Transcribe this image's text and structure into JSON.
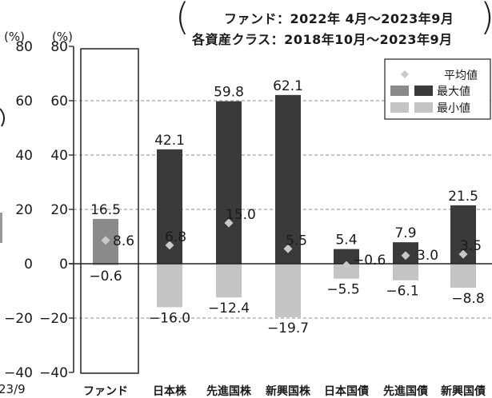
{
  "header": {
    "line1": "ファンド：2022年 4月～2023年9月",
    "line2": "各資産クラス：2018年10月～2023年9月"
  },
  "chart_data": {
    "type": "bar",
    "y_unit_left": "(%)",
    "y_unit_right": "(%)",
    "ylim": [
      -40,
      80
    ],
    "yticks": [
      80,
      60,
      40,
      20,
      0,
      -20,
      -40
    ],
    "ytick_labels": [
      "80",
      "60",
      "40",
      "20",
      "0",
      "−20",
      "−40"
    ],
    "left_partial_xtick": "23/9",
    "categories": [
      "ファンド",
      "日本株",
      "先進国株",
      "新興国株",
      "日本国債",
      "先進国債",
      "新興国債"
    ],
    "series": [
      {
        "name": "最大値",
        "values": [
          16.5,
          42.1,
          59.8,
          62.1,
          5.4,
          7.9,
          21.5
        ],
        "labels": [
          "16.5",
          "42.1",
          "59.8",
          "62.1",
          "5.4",
          "7.9",
          "21.5"
        ]
      },
      {
        "name": "最小値",
        "values": [
          -0.6,
          -16.0,
          -12.4,
          -19.7,
          -5.5,
          -6.1,
          -8.8
        ],
        "labels": [
          "−0.6",
          "−16.0",
          "−12.4",
          "−19.7",
          "−5.5",
          "−6.1",
          "−8.8"
        ]
      },
      {
        "name": "平均値",
        "values": [
          8.6,
          6.8,
          15.0,
          5.5,
          -0.6,
          3.0,
          3.5
        ],
        "labels": [
          "8.6",
          "6.8",
          "15.0",
          "5.5",
          "−0.6",
          "3.0",
          "3.5"
        ]
      }
    ],
    "legend": {
      "position": "top-right",
      "avg_label": "平均値",
      "max_label": "最大値",
      "min_label": "最小値"
    },
    "colors": {
      "fund_max": "#8a8a8a",
      "asset_max": "#3a3a3a",
      "min": "#c4c4c4",
      "avg_marker": "#c9c9c9",
      "grid": "#8c8c8c",
      "axis": "#222222"
    },
    "grid": true
  }
}
